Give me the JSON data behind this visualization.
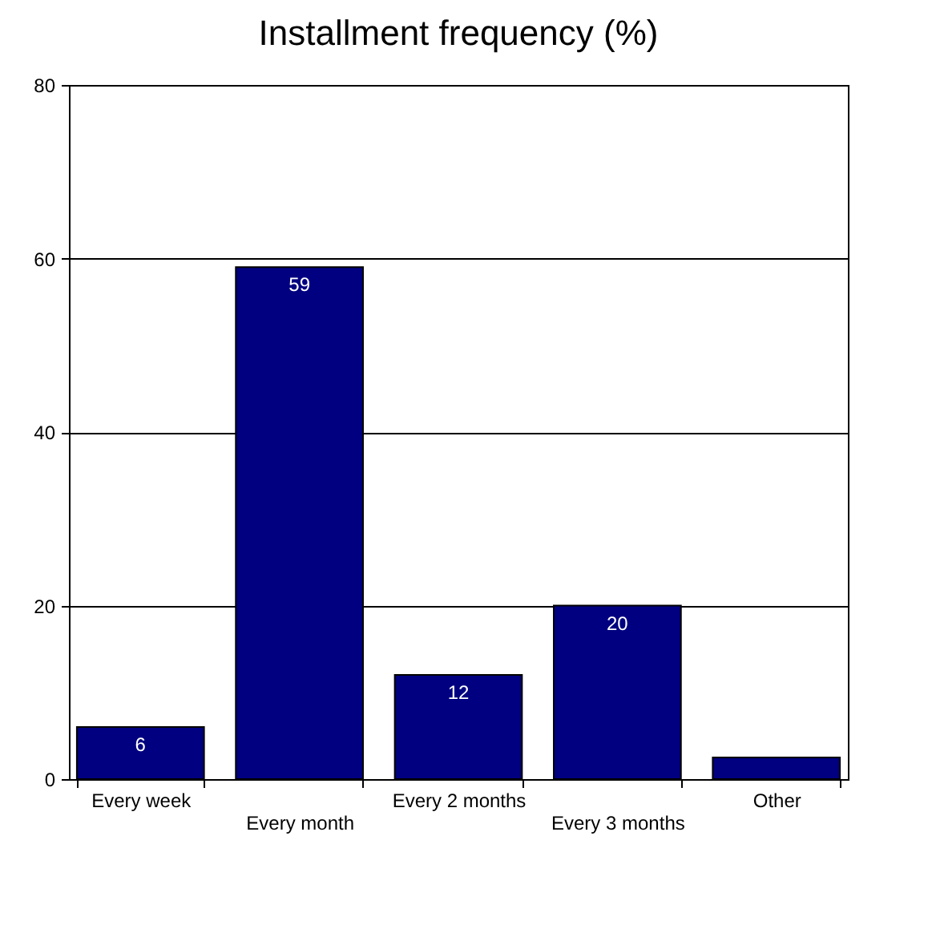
{
  "chart_data": {
    "type": "bar",
    "title": "Installment frequency (%)",
    "categories": [
      "Every week",
      "Every month",
      "Every 2 months",
      "Every 3 months",
      "Other"
    ],
    "values": [
      6,
      59,
      12,
      20,
      2.5
    ],
    "value_labels": [
      "6",
      "59",
      "12",
      "20",
      null
    ],
    "color": "#000080",
    "ylim": [
      0,
      80
    ],
    "yticks": [
      0,
      20,
      40,
      60,
      80
    ],
    "grid": "y"
  }
}
